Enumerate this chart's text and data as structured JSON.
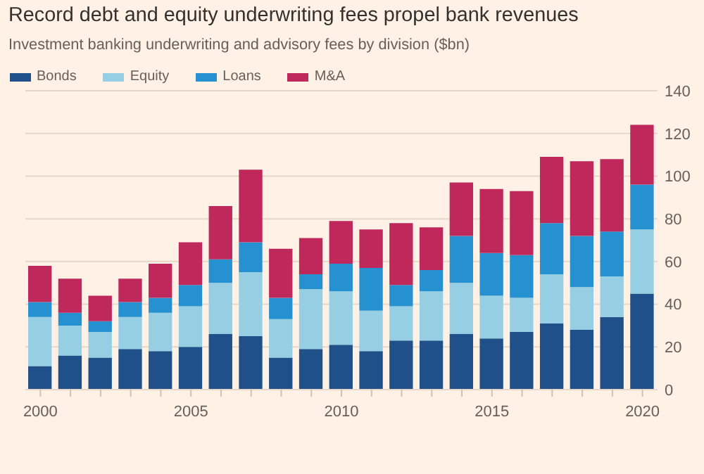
{
  "chart_data": {
    "type": "bar",
    "title": "Record debt and equity underwriting fees propel bank revenues",
    "subtitle": "Investment banking underwriting and advisory fees by division ($bn)",
    "x": [
      2000,
      2001,
      2002,
      2003,
      2004,
      2005,
      2006,
      2007,
      2008,
      2009,
      2010,
      2011,
      2012,
      2013,
      2014,
      2015,
      2016,
      2017,
      2018,
      2019,
      2020
    ],
    "series": [
      {
        "name": "Bonds",
        "color": "#1f5089",
        "values": [
          11,
          16,
          15,
          19,
          18,
          20,
          26,
          25,
          15,
          19,
          21,
          18,
          23,
          23,
          26,
          24,
          27,
          31,
          28,
          34,
          45
        ]
      },
      {
        "name": "Equity",
        "color": "#96cfe4",
        "values": [
          23,
          14,
          12,
          15,
          18,
          19,
          24,
          30,
          18,
          28,
          25,
          19,
          16,
          23,
          24,
          20,
          16,
          23,
          20,
          19,
          30
        ]
      },
      {
        "name": "Loans",
        "color": "#2591d0",
        "values": [
          7,
          6,
          5,
          7,
          7,
          10,
          11,
          14,
          10,
          7,
          13,
          20,
          10,
          10,
          22,
          20,
          20,
          24,
          24,
          21,
          21
        ]
      },
      {
        "name": "M&A",
        "color": "#bf285b",
        "values": [
          17,
          16,
          12,
          11,
          16,
          20,
          25,
          34,
          23,
          17,
          20,
          18,
          29,
          20,
          25,
          30,
          30,
          31,
          35,
          34,
          28
        ]
      }
    ],
    "stacked": true,
    "xlim": [
      1999.5,
      2020.5
    ],
    "xticks": [
      2000,
      {
        "value": 2001,
        "label": null
      },
      {
        "value": 2002,
        "label": null
      },
      {
        "value": 2003,
        "label": null
      },
      {
        "value": 2004,
        "label": null
      },
      2005,
      {
        "value": 2006,
        "label": null
      },
      {
        "value": 2007,
        "label": null
      },
      {
        "value": 2008,
        "label": null
      },
      {
        "value": 2009,
        "label": null
      },
      2010,
      {
        "value": 2011,
        "label": null
      },
      {
        "value": 2012,
        "label": null
      },
      {
        "value": 2013,
        "label": null
      },
      {
        "value": 2014,
        "label": null
      },
      2015,
      {
        "value": 2016,
        "label": null
      },
      {
        "value": 2017,
        "label": null
      },
      {
        "value": 2018,
        "label": null
      },
      {
        "value": 2019,
        "label": null
      },
      2020
    ],
    "ylim": [
      0,
      140
    ],
    "yticks": [
      0,
      20,
      40,
      60,
      80,
      100,
      120,
      140
    ],
    "grid": "y",
    "legend": "top left"
  }
}
